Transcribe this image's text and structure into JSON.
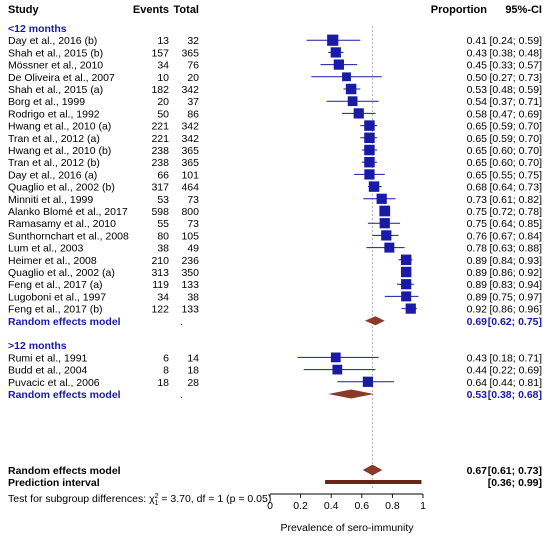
{
  "chart_data": {
    "type": "forest",
    "headers": {
      "study": "Study",
      "events": "Events",
      "total": "Total",
      "proportion": "Proportion",
      "ci": "95%-CI"
    },
    "xlabel": "Prevalence of sero-immunity",
    "xlim": [
      0,
      1
    ],
    "xticks": [
      "0",
      "0.2",
      "0.4",
      "0.6",
      "0.8",
      "1"
    ],
    "colors": {
      "study": "#1a1aa8",
      "diamond": "#8b3a2a",
      "label": "#1a1aa8"
    },
    "subgroups": [
      {
        "label": "<12 months",
        "studies": [
          {
            "study": "Day et al., 2016 (b)",
            "events": "13",
            "total": "32",
            "prop": 0.41,
            "lo": 0.24,
            "hi": 0.59,
            "prop_txt": "0.41",
            "ci_txt": "[0.24; 0.59]",
            "w": 1.0
          },
          {
            "study": "Shah et al., 2015 (b)",
            "events": "157",
            "total": "365",
            "prop": 0.43,
            "lo": 0.38,
            "hi": 0.48,
            "prop_txt": "0.43",
            "ci_txt": "[0.38; 0.48]",
            "w": 0.8
          },
          {
            "study": "Mössner et al., 2010",
            "events": "34",
            "total": "76",
            "prop": 0.45,
            "lo": 0.33,
            "hi": 0.57,
            "prop_txt": "0.45",
            "ci_txt": "[0.33; 0.57]",
            "w": 0.8
          },
          {
            "study": "De Oliveira et al., 2007",
            "events": "10",
            "total": "20",
            "prop": 0.5,
            "lo": 0.27,
            "hi": 0.73,
            "prop_txt": "0.50",
            "ci_txt": "[0.27; 0.73]",
            "w": 0.5
          },
          {
            "study": "Shah et al., 2015 (a)",
            "events": "182",
            "total": "342",
            "prop": 0.53,
            "lo": 0.48,
            "hi": 0.59,
            "prop_txt": "0.53",
            "ci_txt": "[0.48; 0.59]",
            "w": 0.85
          },
          {
            "study": "Borg et al., 1999",
            "events": "20",
            "total": "37",
            "prop": 0.54,
            "lo": 0.37,
            "hi": 0.71,
            "prop_txt": "0.54",
            "ci_txt": "[0.37; 0.71]",
            "w": 0.7
          },
          {
            "study": "Rodrigo et al., 1992",
            "events": "50",
            "total": "86",
            "prop": 0.58,
            "lo": 0.47,
            "hi": 0.69,
            "prop_txt": "0.58",
            "ci_txt": "[0.47; 0.69]",
            "w": 0.8
          },
          {
            "study": "Hwang et al., 2010 (a)",
            "events": "221",
            "total": "342",
            "prop": 0.65,
            "lo": 0.59,
            "hi": 0.7,
            "prop_txt": "0.65",
            "ci_txt": "[0.59; 0.70]",
            "w": 0.85
          },
          {
            "study": "Tran et al., 2012 (a)",
            "events": "221",
            "total": "342",
            "prop": 0.65,
            "lo": 0.59,
            "hi": 0.7,
            "prop_txt": "0.65",
            "ci_txt": "[0.59; 0.70]",
            "w": 0.85
          },
          {
            "study": "Hwang et al., 2010 (b)",
            "events": "238",
            "total": "365",
            "prop": 0.65,
            "lo": 0.6,
            "hi": 0.7,
            "prop_txt": "0.65",
            "ci_txt": "[0.60; 0.70]",
            "w": 0.85
          },
          {
            "study": "Tran et al., 2012 (b)",
            "events": "238",
            "total": "365",
            "prop": 0.65,
            "lo": 0.6,
            "hi": 0.7,
            "prop_txt": "0.65",
            "ci_txt": "[0.60; 0.70]",
            "w": 0.85
          },
          {
            "study": "Day et al., 2016 (a)",
            "events": "66",
            "total": "101",
            "prop": 0.65,
            "lo": 0.55,
            "hi": 0.75,
            "prop_txt": "0.65",
            "ci_txt": "[0.55; 0.75]",
            "w": 0.8
          },
          {
            "study": "Quaglio et al., 2002 (b)",
            "events": "317",
            "total": "464",
            "prop": 0.68,
            "lo": 0.64,
            "hi": 0.73,
            "prop_txt": "0.68",
            "ci_txt": "[0.64; 0.73]",
            "w": 0.85
          },
          {
            "study": "Minniti et al., 1999",
            "events": "53",
            "total": "73",
            "prop": 0.73,
            "lo": 0.61,
            "hi": 0.82,
            "prop_txt": "0.73",
            "ci_txt": "[0.61; 0.82]",
            "w": 0.8
          },
          {
            "study": "Alanko Blomé et al., 2017",
            "events": "598",
            "total": "800",
            "prop": 0.75,
            "lo": 0.72,
            "hi": 0.78,
            "prop_txt": "0.75",
            "ci_txt": "[0.72; 0.78]",
            "w": 0.9
          },
          {
            "study": "Ramasamy et al., 2010",
            "events": "55",
            "total": "73",
            "prop": 0.75,
            "lo": 0.64,
            "hi": 0.85,
            "prop_txt": "0.75",
            "ci_txt": "[0.64; 0.85]",
            "w": 0.8
          },
          {
            "study": "Sunthornchart et al., 2008",
            "events": "80",
            "total": "105",
            "prop": 0.76,
            "lo": 0.67,
            "hi": 0.84,
            "prop_txt": "0.76",
            "ci_txt": "[0.67; 0.84]",
            "w": 0.8
          },
          {
            "study": "Lum et al., 2003",
            "events": "38",
            "total": "49",
            "prop": 0.78,
            "lo": 0.63,
            "hi": 0.88,
            "prop_txt": "0.78",
            "ci_txt": "[0.63; 0.88]",
            "w": 0.75
          },
          {
            "study": "Heimer et al., 2008",
            "events": "210",
            "total": "236",
            "prop": 0.89,
            "lo": 0.84,
            "hi": 0.93,
            "prop_txt": "0.89",
            "ci_txt": "[0.84; 0.93]",
            "w": 0.85
          },
          {
            "study": "Quaglio et al., 2002 (a)",
            "events": "313",
            "total": "350",
            "prop": 0.89,
            "lo": 0.86,
            "hi": 0.92,
            "prop_txt": "0.89",
            "ci_txt": "[0.86; 0.92]",
            "w": 0.85
          },
          {
            "study": "Feng et al., 2017 (a)",
            "events": "119",
            "total": "133",
            "prop": 0.89,
            "lo": 0.83,
            "hi": 0.94,
            "prop_txt": "0.89",
            "ci_txt": "[0.83; 0.94]",
            "w": 0.8
          },
          {
            "study": "Lugoboni et al., 1997",
            "events": "34",
            "total": "38",
            "prop": 0.89,
            "lo": 0.75,
            "hi": 0.97,
            "prop_txt": "0.89",
            "ci_txt": "[0.75; 0.97]",
            "w": 0.75
          },
          {
            "study": "Feng et al., 2017 (b)",
            "events": "122",
            "total": "133",
            "prop": 0.92,
            "lo": 0.86,
            "hi": 0.96,
            "prop_txt": "0.92",
            "ci_txt": "[0.86; 0.96]",
            "w": 0.8
          }
        ],
        "pooled": {
          "label": "Random effects model",
          "prop": 0.69,
          "lo": 0.62,
          "hi": 0.75,
          "prop_txt": "0.69",
          "ci_txt": "[0.62; 0.75]",
          "marker": "."
        }
      },
      {
        "label": ">12 months",
        "studies": [
          {
            "study": "Rumi et al., 1991",
            "events": "6",
            "total": "14",
            "prop": 0.43,
            "lo": 0.18,
            "hi": 0.71,
            "prop_txt": "0.43",
            "ci_txt": "[0.18; 0.71]",
            "w": 0.7
          },
          {
            "study": "Budd et al., 2004",
            "events": "8",
            "total": "18",
            "prop": 0.44,
            "lo": 0.22,
            "hi": 0.69,
            "prop_txt": "0.44",
            "ci_txt": "[0.22; 0.69]",
            "w": 0.7
          },
          {
            "study": "Puvacic et al., 2006",
            "events": "18",
            "total": "28",
            "prop": 0.64,
            "lo": 0.44,
            "hi": 0.81,
            "prop_txt": "0.64",
            "ci_txt": "[0.44; 0.81]",
            "w": 0.8
          }
        ],
        "pooled": {
          "label": "Random effects model",
          "prop": 0.53,
          "lo": 0.38,
          "hi": 0.68,
          "prop_txt": "0.53",
          "ci_txt": "[0.38; 0.68]",
          "marker": "."
        }
      }
    ],
    "overall": {
      "label": "Random effects model",
      "prop": 0.67,
      "lo": 0.61,
      "hi": 0.73,
      "prop_txt": "0.67",
      "ci_txt": "[0.61; 0.73]"
    },
    "prediction": {
      "label": "Prediction interval",
      "lo": 0.36,
      "hi": 0.99,
      "ci_txt": "[0.36; 0.99]"
    },
    "test_text": {
      "prefix": "Test for subgroup differences: ",
      "chi": "χ",
      "sup": "2",
      "sub": "1",
      "rest": " = 3.70, df = 1 (p = 0.05)"
    }
  }
}
